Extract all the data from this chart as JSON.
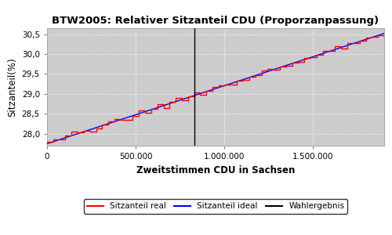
{
  "title": "BTW2005: Relativer Sitzanteil CDU (Proporzanpassung)",
  "xlabel": "Zweitstimmen CDU in Sachsen",
  "ylabel": "Sitzanteil(%)",
  "x_min": 0,
  "x_max": 1900000,
  "y_min": 27.7,
  "y_max": 30.65,
  "wahlergebnis_x": 830000,
  "ideal_start_y": 27.75,
  "ideal_end_y": 30.52,
  "background_color": "#cccccc",
  "grid_color": "#ffffff",
  "legend_labels": [
    "Sitzanteil real",
    "Sitzanteil ideal",
    "Wahlergebnis"
  ],
  "yticks": [
    28.0,
    28.5,
    29.0,
    29.5,
    30.0,
    30.5
  ],
  "xticks": [
    0,
    500000,
    1000000,
    1500000
  ],
  "xtick_labels": [
    "0",
    "500.000",
    "1.000.000",
    "1.500.000"
  ]
}
